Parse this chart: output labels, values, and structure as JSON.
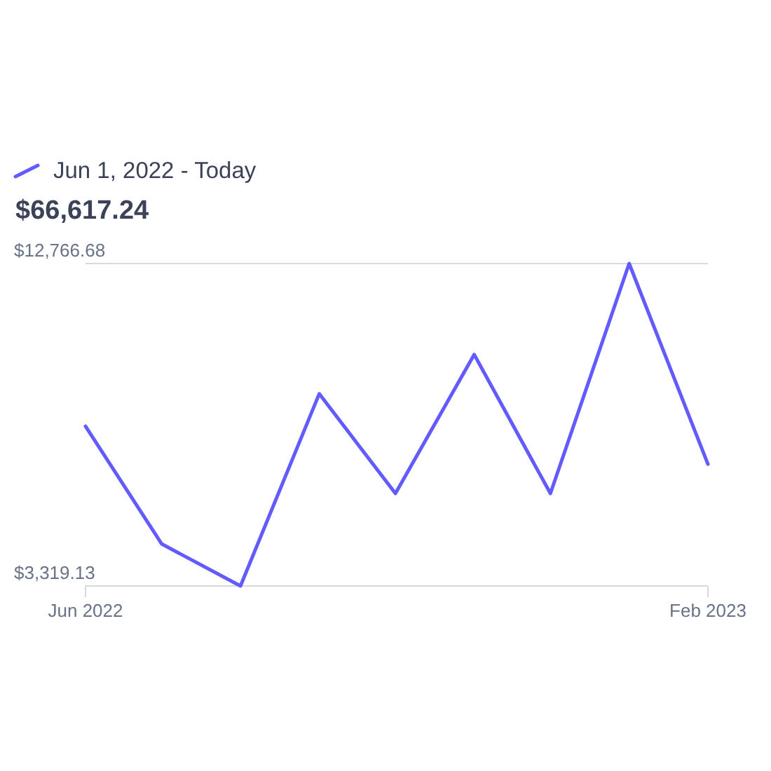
{
  "chart_data": {
    "type": "line",
    "subtitle": "$66,617.24",
    "x": [
      "2022-06",
      "2022-07",
      "2022-08",
      "2022-09",
      "2022-10",
      "2022-11",
      "2022-12",
      "2023-01",
      "2023-02"
    ],
    "series": [
      {
        "name": "Jun 1, 2022 - Today",
        "color": "#635bff",
        "values": [
          8000,
          4550,
          3319.13,
          8950,
          6030,
          10100,
          6030,
          12766.68,
          6890
        ]
      }
    ],
    "xlim": [
      "2022-06",
      "2023-02"
    ],
    "xticks": [
      {
        "value": "2022-06",
        "label": "Jun 2022"
      },
      {
        "value": "2023-02",
        "label": "Feb 2023"
      }
    ],
    "ylim": [
      3319.13,
      12766.68
    ],
    "yticks": [
      {
        "value": 3319.13,
        "label": "$3,319.13"
      },
      {
        "value": 12766.68,
        "label": "$12,766.68"
      }
    ],
    "legend": "top left",
    "marker": "none",
    "line_style": "solid"
  }
}
